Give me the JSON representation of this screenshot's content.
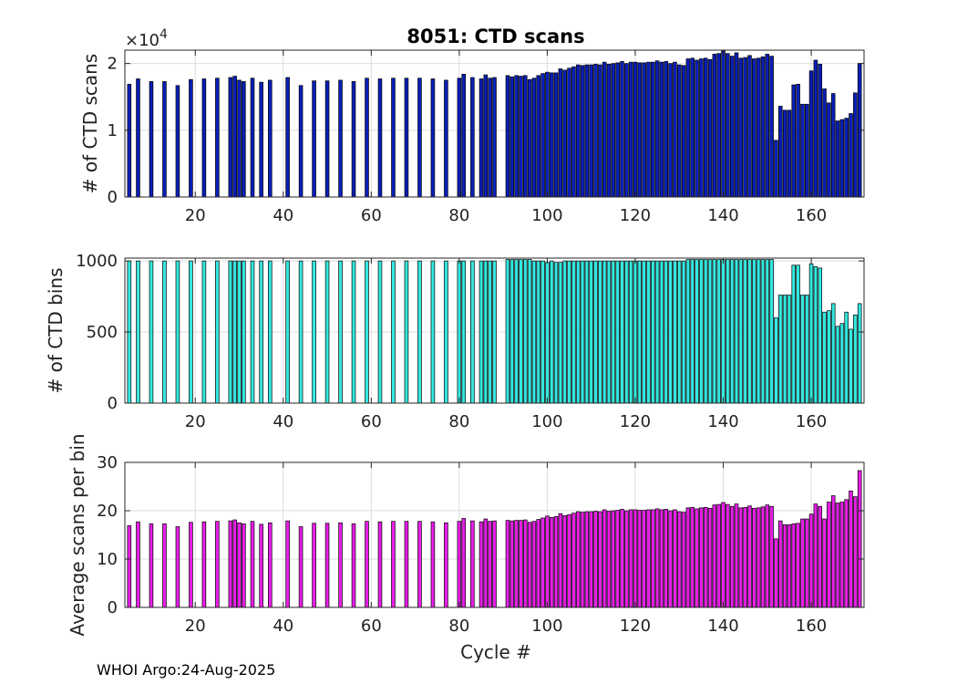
{
  "title": "8051: CTD scans",
  "xlabel": "Cycle #",
  "footer": "WHOI Argo:24-Aug-2025",
  "chart_data": [
    {
      "type": "bar",
      "name": "ctd-scans",
      "title": "8051: CTD scans",
      "ylabel": "# of CTD scans",
      "color": "#0a1fb8",
      "xlim": [
        4,
        172
      ],
      "ylim": [
        0,
        22000
      ],
      "xticks": [
        20,
        40,
        60,
        80,
        100,
        120,
        140,
        160
      ],
      "xtick_labels": [
        "20",
        "40",
        "60",
        "80",
        "100",
        "120",
        "140",
        "160"
      ],
      "yticks": [
        0,
        10000,
        20000
      ],
      "ytick_labels": [
        "0",
        "1",
        "2"
      ],
      "exponent_label": "×10",
      "exponent": "4",
      "grid": true,
      "x": [
        5,
        7,
        10,
        13,
        16,
        19,
        22,
        25,
        28,
        29,
        30,
        31,
        33,
        35,
        37,
        41,
        44,
        47,
        50,
        53,
        56,
        59,
        62,
        65,
        68,
        71,
        74,
        77,
        80,
        81,
        83,
        85,
        86,
        87,
        88,
        91,
        92,
        93,
        94,
        95,
        96,
        97,
        98,
        99,
        100,
        101,
        102,
        103,
        104,
        105,
        106,
        107,
        108,
        109,
        110,
        111,
        112,
        113,
        114,
        115,
        116,
        117,
        118,
        119,
        120,
        121,
        122,
        123,
        124,
        125,
        126,
        127,
        128,
        129,
        130,
        131,
        132,
        133,
        134,
        135,
        136,
        137,
        138,
        139,
        140,
        141,
        142,
        143,
        144,
        145,
        146,
        147,
        148,
        149,
        150,
        151,
        152,
        153,
        154,
        155,
        156,
        157,
        158,
        159,
        160,
        161,
        162,
        163,
        164,
        165,
        166,
        167,
        168,
        169,
        170,
        171
      ],
      "values": [
        16900,
        17700,
        17300,
        17300,
        16700,
        17600,
        17700,
        17800,
        17900,
        18100,
        17500,
        17300,
        17800,
        17200,
        17500,
        17900,
        16700,
        17400,
        17400,
        17500,
        17300,
        17800,
        17700,
        17800,
        17800,
        17800,
        17700,
        17500,
        17800,
        18400,
        17900,
        17700,
        18300,
        17800,
        17900,
        18200,
        18000,
        18200,
        18100,
        18200,
        17600,
        17800,
        18200,
        18500,
        18700,
        18600,
        18600,
        19200,
        19000,
        19300,
        19500,
        19800,
        19700,
        19800,
        19800,
        19900,
        19800,
        20200,
        19900,
        20000,
        20100,
        20300,
        20000,
        20200,
        20200,
        20100,
        20100,
        20200,
        20200,
        20400,
        20200,
        20300,
        20000,
        20200,
        19800,
        19700,
        20700,
        20800,
        20500,
        20700,
        20800,
        20600,
        21400,
        21500,
        21900,
        21500,
        21100,
        21600,
        20800,
        20900,
        21200,
        20700,
        20800,
        21000,
        21400,
        21100,
        8500,
        13600,
        13000,
        13000,
        16800,
        16900,
        13900,
        13900,
        18900,
        20500,
        19900,
        16200,
        14100,
        15500,
        11400,
        11600,
        11800,
        12500,
        15600,
        20000
      ]
    },
    {
      "type": "bar",
      "name": "ctd-bins",
      "ylabel": "# of CTD bins",
      "color": "#33e8e0",
      "xlim": [
        4,
        172
      ],
      "ylim": [
        0,
        1020
      ],
      "xticks": [
        20,
        40,
        60,
        80,
        100,
        120,
        140,
        160
      ],
      "xtick_labels": [
        "20",
        "40",
        "60",
        "80",
        "100",
        "120",
        "140",
        "160"
      ],
      "yticks": [
        0,
        500,
        1000
      ],
      "ytick_labels": [
        "0",
        "500",
        "1000"
      ],
      "grid": true,
      "x": [
        5,
        7,
        10,
        13,
        16,
        19,
        22,
        25,
        28,
        29,
        30,
        31,
        33,
        35,
        37,
        41,
        44,
        47,
        50,
        53,
        56,
        59,
        62,
        65,
        68,
        71,
        74,
        77,
        80,
        81,
        83,
        85,
        86,
        87,
        88,
        91,
        92,
        93,
        94,
        95,
        96,
        97,
        98,
        99,
        100,
        101,
        102,
        103,
        104,
        105,
        106,
        107,
        108,
        109,
        110,
        111,
        112,
        113,
        114,
        115,
        116,
        117,
        118,
        119,
        120,
        121,
        122,
        123,
        124,
        125,
        126,
        127,
        128,
        129,
        130,
        131,
        132,
        133,
        134,
        135,
        136,
        137,
        138,
        139,
        140,
        141,
        142,
        143,
        144,
        145,
        146,
        147,
        148,
        149,
        150,
        151,
        152,
        153,
        154,
        155,
        156,
        157,
        158,
        159,
        160,
        161,
        162,
        163,
        164,
        165,
        166,
        167,
        168,
        169,
        170,
        171
      ],
      "values": [
        1000,
        1000,
        1000,
        1000,
        1000,
        1000,
        1000,
        1000,
        1000,
        1000,
        1000,
        1000,
        1000,
        1000,
        1000,
        1000,
        1000,
        1000,
        1000,
        1000,
        1000,
        1000,
        1000,
        1000,
        1000,
        1000,
        1000,
        1000,
        1000,
        1000,
        1000,
        1000,
        1000,
        1000,
        1000,
        1010,
        1010,
        1010,
        1010,
        1010,
        1010,
        1000,
        1000,
        1000,
        990,
        1000,
        990,
        990,
        1000,
        1000,
        1000,
        1000,
        1000,
        1000,
        1000,
        1000,
        1000,
        1000,
        1000,
        1000,
        1000,
        1000,
        1000,
        1000,
        1000,
        1000,
        1000,
        1000,
        1000,
        1000,
        1000,
        1000,
        1000,
        1000,
        1000,
        1000,
        1010,
        1010,
        1010,
        1010,
        1010,
        1010,
        1010,
        1010,
        1010,
        1010,
        1010,
        1010,
        1010,
        1010,
        1010,
        1010,
        1010,
        1010,
        1010,
        1010,
        600,
        760,
        760,
        760,
        970,
        970,
        760,
        760,
        980,
        960,
        950,
        640,
        650,
        700,
        540,
        560,
        640,
        520,
        620,
        700
      ]
    },
    {
      "type": "bar",
      "name": "avg-scans-per-bin",
      "ylabel": "Average scans per bin",
      "xlabel": "Cycle #",
      "color": "#e81ee8",
      "xlim": [
        4,
        172
      ],
      "ylim": [
        0,
        30
      ],
      "xticks": [
        20,
        40,
        60,
        80,
        100,
        120,
        140,
        160
      ],
      "xtick_labels": [
        "20",
        "40",
        "60",
        "80",
        "100",
        "120",
        "140",
        "160"
      ],
      "yticks": [
        0,
        10,
        20,
        30
      ],
      "ytick_labels": [
        "0",
        "10",
        "20",
        "30"
      ],
      "grid": true,
      "x": [
        5,
        7,
        10,
        13,
        16,
        19,
        22,
        25,
        28,
        29,
        30,
        31,
        33,
        35,
        37,
        41,
        44,
        47,
        50,
        53,
        56,
        59,
        62,
        65,
        68,
        71,
        74,
        77,
        80,
        81,
        83,
        85,
        86,
        87,
        88,
        91,
        92,
        93,
        94,
        95,
        96,
        97,
        98,
        99,
        100,
        101,
        102,
        103,
        104,
        105,
        106,
        107,
        108,
        109,
        110,
        111,
        112,
        113,
        114,
        115,
        116,
        117,
        118,
        119,
        120,
        121,
        122,
        123,
        124,
        125,
        126,
        127,
        128,
        129,
        130,
        131,
        132,
        133,
        134,
        135,
        136,
        137,
        138,
        139,
        140,
        141,
        142,
        143,
        144,
        145,
        146,
        147,
        148,
        149,
        150,
        151,
        152,
        153,
        154,
        155,
        156,
        157,
        158,
        159,
        160,
        161,
        162,
        163,
        164,
        165,
        166,
        167,
        168,
        169,
        170,
        171
      ],
      "values": [
        16.9,
        17.7,
        17.3,
        17.3,
        16.7,
        17.6,
        17.7,
        17.8,
        17.9,
        18.1,
        17.5,
        17.3,
        17.8,
        17.2,
        17.5,
        17.9,
        16.7,
        17.4,
        17.4,
        17.5,
        17.3,
        17.8,
        17.7,
        17.8,
        17.8,
        17.8,
        17.7,
        17.5,
        17.8,
        18.4,
        17.9,
        17.7,
        18.3,
        17.8,
        17.9,
        18.0,
        17.9,
        18.0,
        18.0,
        18.1,
        17.6,
        17.8,
        18.2,
        18.5,
        18.9,
        18.6,
        18.8,
        19.4,
        19.0,
        19.2,
        19.5,
        19.8,
        19.7,
        19.8,
        19.8,
        19.9,
        19.8,
        20.2,
        19.9,
        20.0,
        20.1,
        20.3,
        20.0,
        20.2,
        20.2,
        20.1,
        20.1,
        20.2,
        20.2,
        20.4,
        20.2,
        20.3,
        20.0,
        20.2,
        19.8,
        19.7,
        20.6,
        20.7,
        20.4,
        20.6,
        20.7,
        20.5,
        21.2,
        21.3,
        21.7,
        21.3,
        20.9,
        21.4,
        20.6,
        20.7,
        21.0,
        20.5,
        20.6,
        20.8,
        21.2,
        20.9,
        14.2,
        17.9,
        17.1,
        17.1,
        17.3,
        17.4,
        18.3,
        18.3,
        19.3,
        21.4,
        20.9,
        18.3,
        21.8,
        23.1,
        21.6,
        21.8,
        22.3,
        24.1,
        22.9,
        28.3
      ]
    }
  ]
}
